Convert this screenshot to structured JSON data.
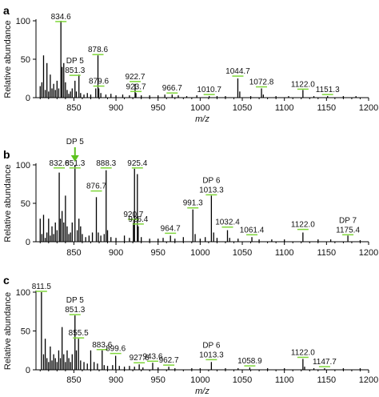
{
  "chart_data": [
    {
      "type": "bar",
      "panel_label": "a",
      "xlabel": "m/z",
      "ylabel": "Relative abundance",
      "xlim": [
        805,
        1200
      ],
      "ylim": [
        0,
        100
      ],
      "xticks": [
        850,
        900,
        950,
        1000,
        1050,
        1100,
        1150,
        1200
      ],
      "yticks": [
        0,
        50,
        100
      ],
      "peak_labels": [
        {
          "mz": 834.6,
          "label": "834.6",
          "y": 98
        },
        {
          "mz": 851.3,
          "label": "851.3",
          "y": 28
        },
        {
          "mz": 878.6,
          "label": "878.6",
          "y": 55
        },
        {
          "mz": 879.6,
          "label": "879.6",
          "y": 14
        },
        {
          "mz": 922.7,
          "label": "922.7",
          "y": 20
        },
        {
          "mz": 923.7,
          "label": "923.7",
          "y": 7
        },
        {
          "mz": 966.7,
          "label": "966.7",
          "y": 5
        },
        {
          "mz": 1010.7,
          "label": "1010.7",
          "y": 3
        },
        {
          "mz": 1044.7,
          "label": "1044.7",
          "y": 27
        },
        {
          "mz": 1072.8,
          "label": "1072.8",
          "y": 13
        },
        {
          "mz": 1122.0,
          "label": "1122.0",
          "y": 10
        },
        {
          "mz": 1151.3,
          "label": "1151.3",
          "y": 3
        }
      ],
      "dp_labels": [
        {
          "mz": 851.3,
          "label": "DP 5"
        }
      ],
      "peaks": [
        [
          810,
          15
        ],
        [
          812,
          20
        ],
        [
          814,
          55
        ],
        [
          816,
          10
        ],
        [
          818,
          45
        ],
        [
          820,
          8
        ],
        [
          822,
          30
        ],
        [
          824,
          12
        ],
        [
          826,
          18
        ],
        [
          828,
          10
        ],
        [
          830,
          22
        ],
        [
          832,
          12
        ],
        [
          834.6,
          100
        ],
        [
          836,
          40
        ],
        [
          838,
          45
        ],
        [
          840,
          20
        ],
        [
          842,
          10
        ],
        [
          844,
          5
        ],
        [
          846,
          8
        ],
        [
          848,
          12
        ],
        [
          851.3,
          22
        ],
        [
          853,
          8
        ],
        [
          856,
          30
        ],
        [
          858,
          6
        ],
        [
          862,
          4
        ],
        [
          866,
          6
        ],
        [
          870,
          4
        ],
        [
          876,
          12
        ],
        [
          878.6,
          55
        ],
        [
          879.6,
          12
        ],
        [
          882,
          6
        ],
        [
          888,
          4
        ],
        [
          894,
          5
        ],
        [
          900,
          3
        ],
        [
          908,
          4
        ],
        [
          916,
          3
        ],
        [
          922.7,
          18
        ],
        [
          923.7,
          6
        ],
        [
          930,
          3
        ],
        [
          940,
          3
        ],
        [
          950,
          3
        ],
        [
          958,
          4
        ],
        [
          966.7,
          4
        ],
        [
          974,
          3
        ],
        [
          984,
          2
        ],
        [
          996,
          3
        ],
        [
          1010.7,
          2
        ],
        [
          1020,
          2
        ],
        [
          1030,
          2
        ],
        [
          1044.7,
          25
        ],
        [
          1047,
          8
        ],
        [
          1060,
          2
        ],
        [
          1072.8,
          12
        ],
        [
          1075,
          4
        ],
        [
          1090,
          2
        ],
        [
          1105,
          2
        ],
        [
          1122.0,
          10
        ],
        [
          1135,
          2
        ],
        [
          1151.3,
          2
        ],
        [
          1170,
          2
        ],
        [
          1185,
          2
        ]
      ]
    },
    {
      "type": "bar",
      "panel_label": "b",
      "xlabel": "",
      "ylabel": "Relative abundance",
      "xlim": [
        805,
        1200
      ],
      "ylim": [
        0,
        100
      ],
      "xticks": [
        850,
        900,
        950,
        1000,
        1050,
        1100,
        1150,
        1200
      ],
      "yticks": [
        0,
        50,
        100
      ],
      "peak_labels": [
        {
          "mz": 832.6,
          "label": "832.6",
          "y": 95
        },
        {
          "mz": 851.3,
          "label": "851.3",
          "y": 95
        },
        {
          "mz": 876.7,
          "label": "876.7",
          "y": 65
        },
        {
          "mz": 888.3,
          "label": "888.3",
          "y": 95
        },
        {
          "mz": 920.7,
          "label": "920.7",
          "y": 28
        },
        {
          "mz": 925.4,
          "label": "925.4",
          "y": 95
        },
        {
          "mz": 926.4,
          "label": "926.4",
          "y": 22
        },
        {
          "mz": 964.7,
          "label": "964.7",
          "y": 10
        },
        {
          "mz": 991.3,
          "label": "991.3",
          "y": 43
        },
        {
          "mz": 1013.3,
          "label": "1013.3",
          "y": 60
        },
        {
          "mz": 1032.4,
          "label": "1032.4",
          "y": 18
        },
        {
          "mz": 1061.4,
          "label": "1061.4",
          "y": 8
        },
        {
          "mz": 1122.0,
          "label": "1122.0",
          "y": 15
        },
        {
          "mz": 1175.4,
          "label": "1175.4",
          "y": 8
        }
      ],
      "dp_labels": [
        {
          "mz": 851.3,
          "label": "DP 5"
        },
        {
          "mz": 1013.3,
          "label": "DP 6"
        },
        {
          "mz": 1175.4,
          "label": "DP 7"
        }
      ],
      "arrow_at": 851.3,
      "peaks": [
        [
          810,
          30
        ],
        [
          812,
          10
        ],
        [
          814,
          35
        ],
        [
          816,
          5
        ],
        [
          818,
          12
        ],
        [
          820,
          30
        ],
        [
          822,
          8
        ],
        [
          824,
          20
        ],
        [
          826,
          10
        ],
        [
          828,
          25
        ],
        [
          830,
          15
        ],
        [
          832.6,
          90
        ],
        [
          834,
          30
        ],
        [
          836,
          40
        ],
        [
          838,
          25
        ],
        [
          840,
          60
        ],
        [
          842,
          20
        ],
        [
          844,
          10
        ],
        [
          846,
          12
        ],
        [
          848,
          25
        ],
        [
          851.3,
          100
        ],
        [
          854,
          15
        ],
        [
          856,
          30
        ],
        [
          858,
          20
        ],
        [
          860,
          10
        ],
        [
          864,
          6
        ],
        [
          868,
          8
        ],
        [
          872,
          12
        ],
        [
          876.7,
          58
        ],
        [
          879,
          12
        ],
        [
          882,
          8
        ],
        [
          886,
          10
        ],
        [
          888.3,
          93
        ],
        [
          890,
          15
        ],
        [
          894,
          6
        ],
        [
          900,
          5
        ],
        [
          910,
          8
        ],
        [
          916,
          5
        ],
        [
          920.7,
          25
        ],
        [
          922,
          95
        ],
        [
          925.4,
          88
        ],
        [
          926.4,
          20
        ],
        [
          930,
          6
        ],
        [
          940,
          4
        ],
        [
          950,
          4
        ],
        [
          956,
          5
        ],
        [
          964.7,
          8
        ],
        [
          970,
          4
        ],
        [
          980,
          6
        ],
        [
          991.3,
          42
        ],
        [
          994,
          10
        ],
        [
          1000,
          4
        ],
        [
          1006,
          6
        ],
        [
          1013.3,
          60
        ],
        [
          1016,
          12
        ],
        [
          1020,
          5
        ],
        [
          1032.4,
          15
        ],
        [
          1035,
          5
        ],
        [
          1045,
          4
        ],
        [
          1061.4,
          6
        ],
        [
          1070,
          3
        ],
        [
          1085,
          3
        ],
        [
          1100,
          3
        ],
        [
          1122.0,
          12
        ],
        [
          1140,
          3
        ],
        [
          1155,
          3
        ],
        [
          1175.4,
          8
        ],
        [
          1190,
          2
        ]
      ]
    },
    {
      "type": "bar",
      "panel_label": "c",
      "xlabel": "m/z",
      "ylabel": "Relative abundance",
      "xlim": [
        805,
        1200
      ],
      "ylim": [
        0,
        100
      ],
      "xticks": [
        850,
        900,
        950,
        1000,
        1050,
        1100,
        1150,
        1200
      ],
      "yticks": [
        0,
        50,
        100
      ],
      "peak_labels": [
        {
          "mz": 811.5,
          "label": "811.5",
          "y": 100
        },
        {
          "mz": 851.3,
          "label": "851.3",
          "y": 70
        },
        {
          "mz": 855.5,
          "label": "855.5",
          "y": 40
        },
        {
          "mz": 883.6,
          "label": "883.6",
          "y": 25
        },
        {
          "mz": 899.6,
          "label": "899.6",
          "y": 20
        },
        {
          "mz": 927.6,
          "label": "927.6",
          "y": 8
        },
        {
          "mz": 943.6,
          "label": "943.6",
          "y": 10
        },
        {
          "mz": 962.7,
          "label": "962.7",
          "y": 5
        },
        {
          "mz": 1013.3,
          "label": "1013.3",
          "y": 12
        },
        {
          "mz": 1058.9,
          "label": "1058.9",
          "y": 4
        },
        {
          "mz": 1122.0,
          "label": "1122.0",
          "y": 15
        },
        {
          "mz": 1147.7,
          "label": "1147.7",
          "y": 3
        }
      ],
      "dp_labels": [
        {
          "mz": 851.3,
          "label": "DP 5"
        },
        {
          "mz": 1013.3,
          "label": "DP 6"
        }
      ],
      "peaks": [
        [
          811.5,
          100
        ],
        [
          814,
          20
        ],
        [
          816,
          40
        ],
        [
          818,
          15
        ],
        [
          820,
          10
        ],
        [
          822,
          30
        ],
        [
          824,
          12
        ],
        [
          826,
          20
        ],
        [
          828,
          15
        ],
        [
          830,
          10
        ],
        [
          832,
          25
        ],
        [
          834,
          15
        ],
        [
          836,
          55
        ],
        [
          838,
          20
        ],
        [
          840,
          10
        ],
        [
          842,
          25
        ],
        [
          844,
          15
        ],
        [
          846,
          10
        ],
        [
          848,
          20
        ],
        [
          851.3,
          70
        ],
        [
          853,
          25
        ],
        [
          855.5,
          40
        ],
        [
          858,
          12
        ],
        [
          862,
          10
        ],
        [
          866,
          8
        ],
        [
          870,
          25
        ],
        [
          874,
          10
        ],
        [
          878,
          8
        ],
        [
          883.6,
          25
        ],
        [
          886,
          6
        ],
        [
          890,
          5
        ],
        [
          896,
          6
        ],
        [
          899.6,
          18
        ],
        [
          904,
          5
        ],
        [
          910,
          4
        ],
        [
          916,
          5
        ],
        [
          922,
          4
        ],
        [
          927.6,
          7
        ],
        [
          932,
          3
        ],
        [
          943.6,
          9
        ],
        [
          950,
          3
        ],
        [
          962.7,
          4
        ],
        [
          970,
          2
        ],
        [
          990,
          2
        ],
        [
          1000,
          2
        ],
        [
          1013.3,
          10
        ],
        [
          1030,
          2
        ],
        [
          1045,
          2
        ],
        [
          1058.9,
          3
        ],
        [
          1080,
          2
        ],
        [
          1100,
          2
        ],
        [
          1122.0,
          14
        ],
        [
          1124,
          4
        ],
        [
          1135,
          2
        ],
        [
          1147.7,
          2
        ],
        [
          1170,
          2
        ],
        [
          1190,
          2
        ]
      ]
    }
  ]
}
